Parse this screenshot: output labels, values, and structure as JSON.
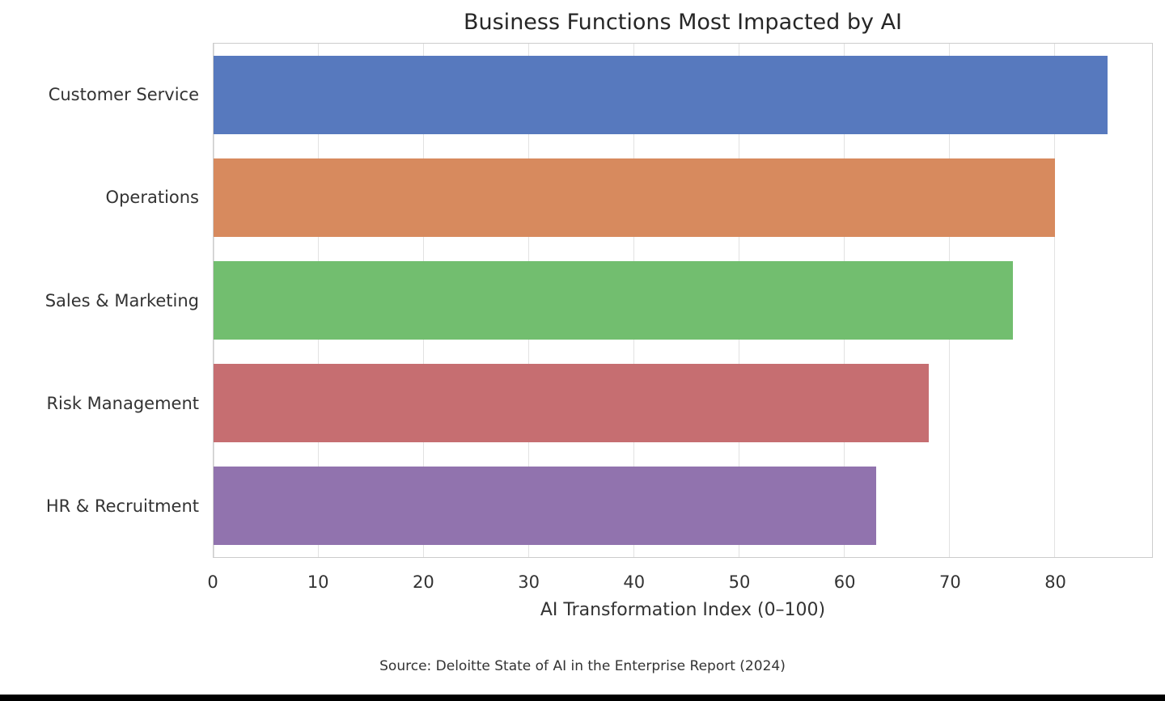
{
  "chart_data": {
    "type": "bar",
    "orientation": "horizontal",
    "title": "Business Functions Most Impacted by AI",
    "categories": [
      "Customer Service",
      "Operations",
      "Sales & Marketing",
      "Risk Management",
      "HR & Recruitment"
    ],
    "values": [
      85,
      80,
      76,
      68,
      63
    ],
    "bar_colors": [
      "#5779BE",
      "#D78A5E",
      "#72BE6F",
      "#C66E71",
      "#9173AE"
    ],
    "xlabel": "AI Transformation Index (0–100)",
    "ylabel": "",
    "xlim": [
      0,
      89.25
    ],
    "xticks": [
      0,
      10,
      20,
      30,
      40,
      50,
      60,
      70,
      80
    ],
    "grid": "vertical",
    "legend": "none",
    "source": "Source: Deloitte State of AI in the Enterprise Report (2024)"
  },
  "ui_colors": {
    "background": "#ffffff",
    "grid": "#e2e2e2",
    "spine": "#cccccc",
    "title_text": "#262626",
    "label_text": "#333333",
    "bottom_bar": "#000000"
  }
}
